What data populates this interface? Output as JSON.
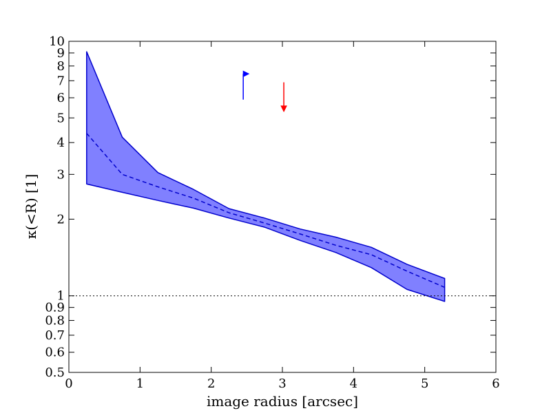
{
  "chart_data": {
    "type": "area",
    "xlabel": "image radius [arcsec]",
    "ylabel": "κ(<R) [1]",
    "xlim": [
      0,
      6
    ],
    "ylim": [
      0.5,
      10
    ],
    "yscale": "log",
    "grid": false,
    "colors": {
      "band_fill": "#8080ff",
      "band_edge": "#0000cc",
      "median": "#0000cc",
      "up_arrow": "#0000ff",
      "down_arrow": "#ff0000",
      "reference_line": "#000000"
    },
    "x_ticks": [
      {
        "value": 0,
        "label": "0"
      },
      {
        "value": 1,
        "label": "1"
      },
      {
        "value": 2,
        "label": "2"
      },
      {
        "value": 3,
        "label": "3"
      },
      {
        "value": 4,
        "label": "4"
      },
      {
        "value": 5,
        "label": "5"
      },
      {
        "value": 6,
        "label": "6"
      }
    ],
    "y_ticks": [
      {
        "value": 0.5,
        "label": "0.5"
      },
      {
        "value": 0.6,
        "label": "0.6"
      },
      {
        "value": 0.7,
        "label": "0.7"
      },
      {
        "value": 0.8,
        "label": "0.8"
      },
      {
        "value": 0.9,
        "label": "0.9"
      },
      {
        "value": 1,
        "label": "1"
      },
      {
        "value": 2,
        "label": "2"
      },
      {
        "value": 3,
        "label": "3"
      },
      {
        "value": 4,
        "label": "4"
      },
      {
        "value": 5,
        "label": "5"
      },
      {
        "value": 6,
        "label": "6"
      },
      {
        "value": 7,
        "label": "7"
      },
      {
        "value": 8,
        "label": "8"
      },
      {
        "value": 9,
        "label": "9"
      },
      {
        "value": 10,
        "label": "10"
      }
    ],
    "band": {
      "x": [
        0.25,
        0.75,
        1.25,
        1.75,
        2.25,
        2.75,
        3.25,
        3.75,
        4.25,
        4.75,
        5.28
      ],
      "upper": [
        9.1,
        4.2,
        3.05,
        2.62,
        2.2,
        2.02,
        1.83,
        1.7,
        1.55,
        1.33,
        1.17
      ],
      "lower": [
        2.75,
        2.55,
        2.37,
        2.21,
        2.02,
        1.86,
        1.65,
        1.48,
        1.29,
        1.06,
        0.95
      ],
      "median": [
        4.35,
        3.0,
        2.68,
        2.42,
        2.12,
        1.93,
        1.75,
        1.58,
        1.45,
        1.25,
        1.08
      ]
    },
    "reference_line_y": 1.0,
    "arrows": [
      {
        "direction": "up",
        "x": 2.45,
        "y_start": 5.9,
        "y_end": 7.45
      },
      {
        "direction": "down",
        "x": 3.02,
        "y_start": 6.9,
        "y_end": 5.3
      }
    ]
  }
}
